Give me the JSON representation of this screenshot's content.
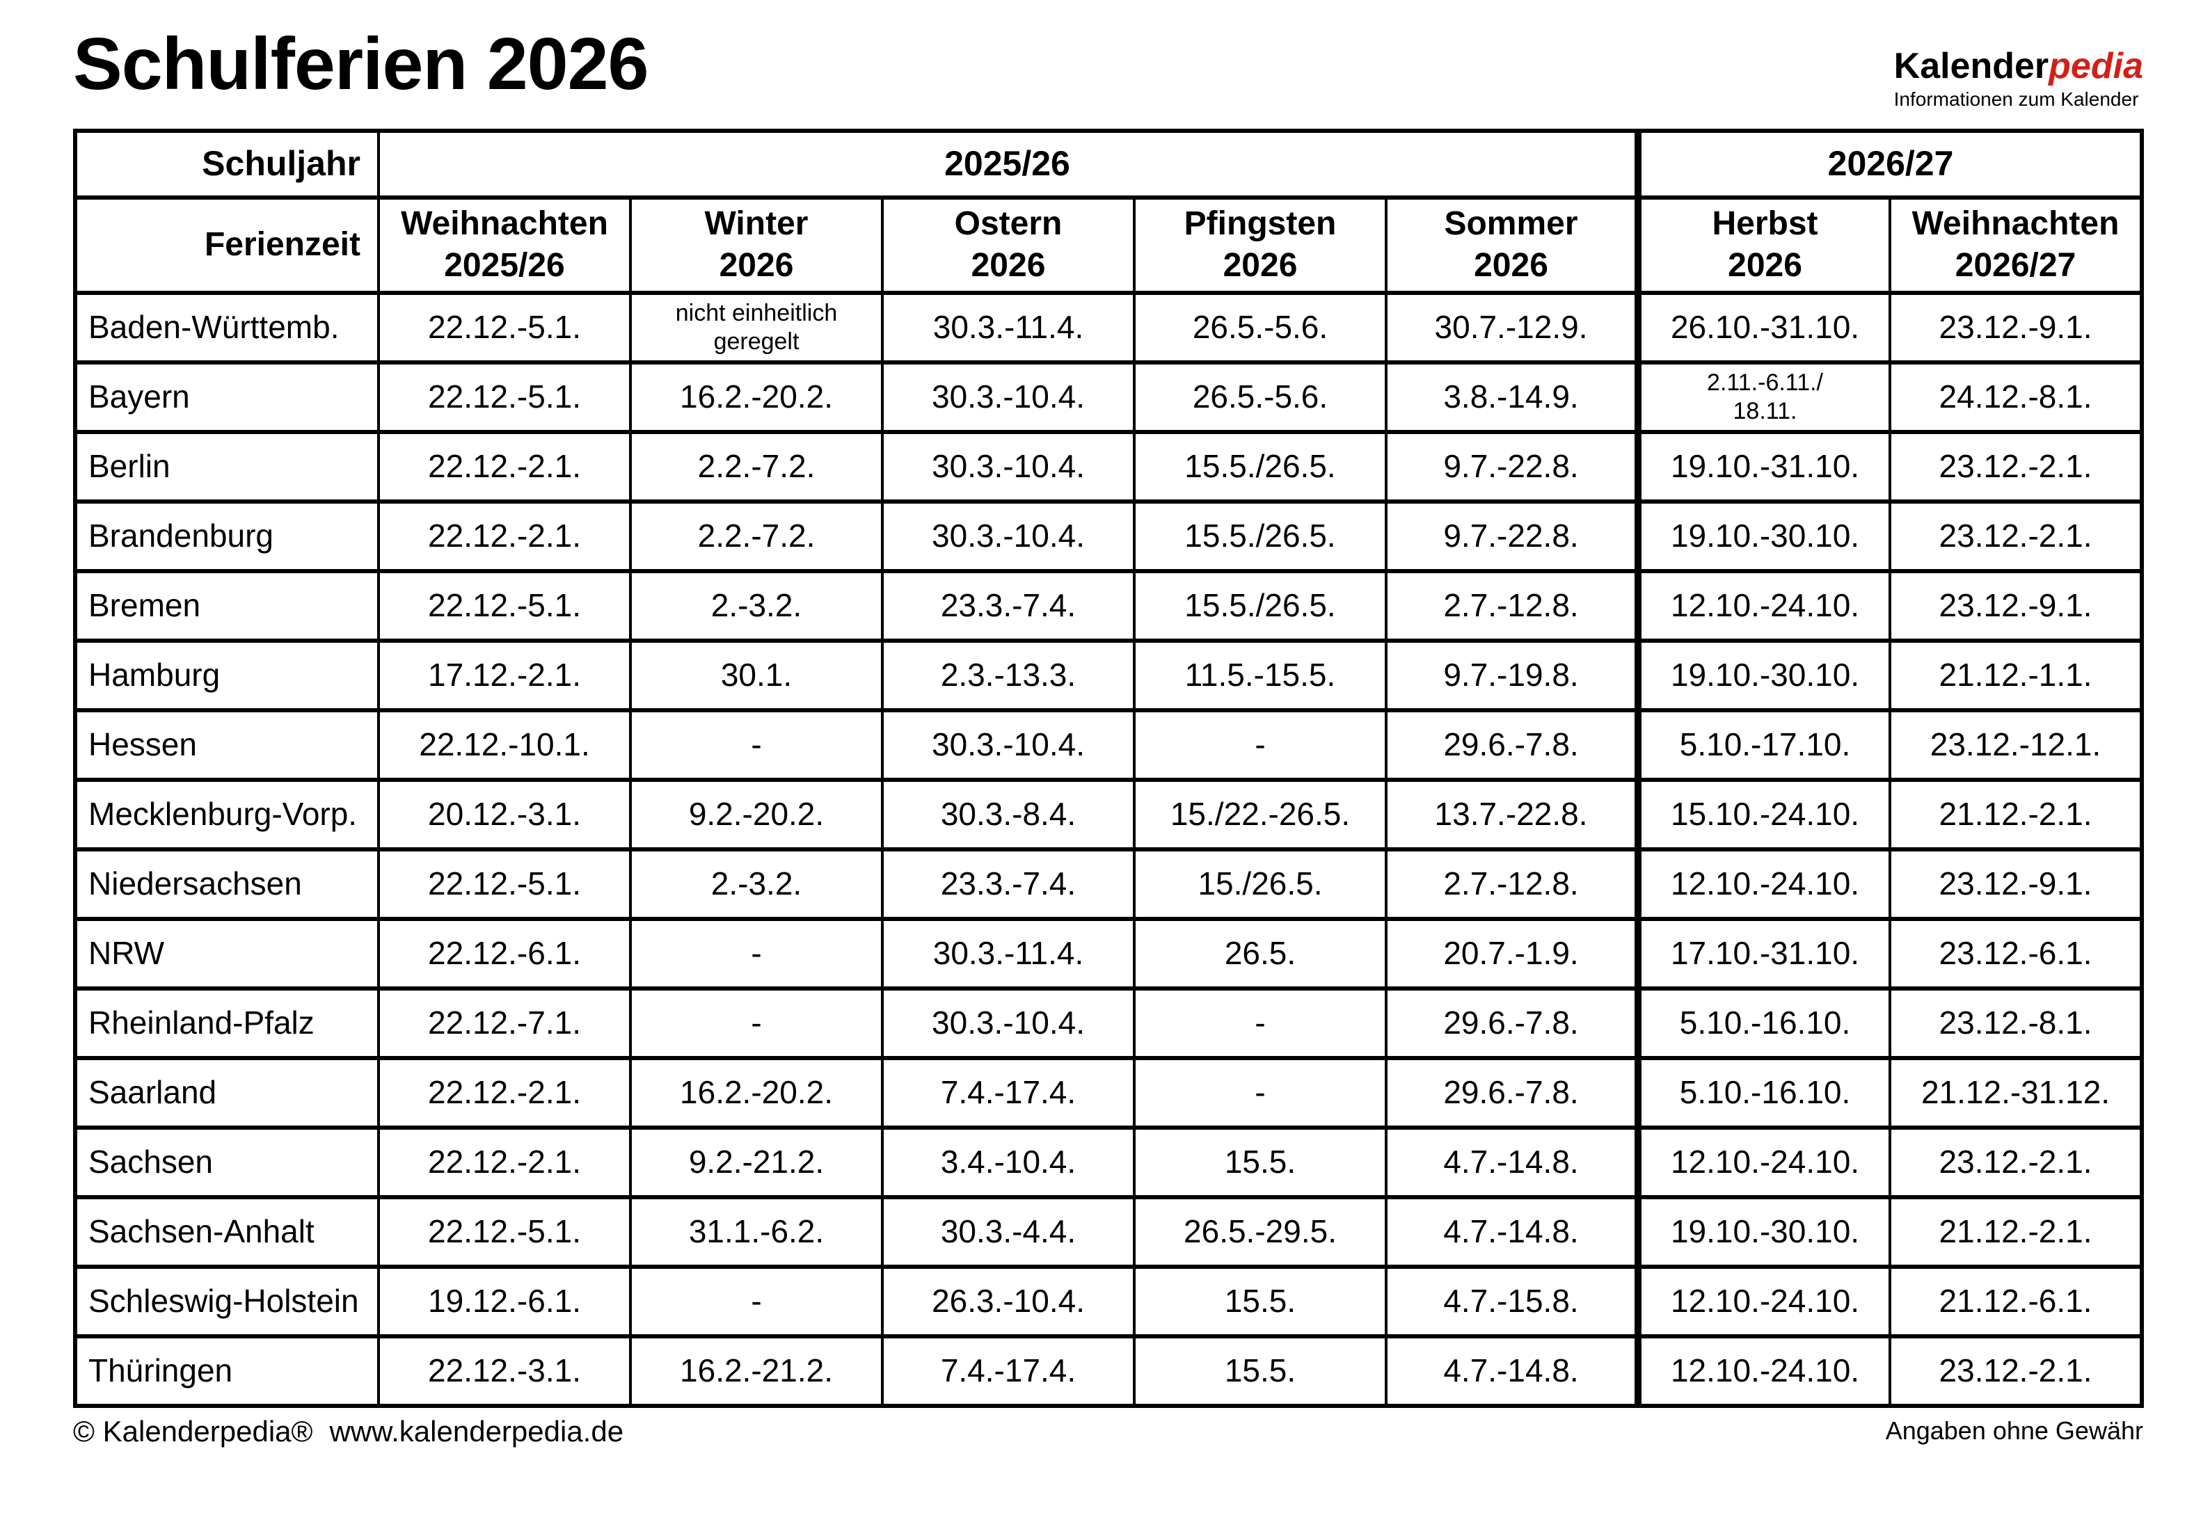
{
  "title": "Schulferien 2026",
  "logo": {
    "brand_black": "Kalender",
    "brand_red": "pedia",
    "brand_red_color": "#d22019",
    "tagline": "Informationen zum Kalender"
  },
  "table": {
    "corner_row1": "Schuljahr",
    "corner_row2": "Ferienzeit",
    "year_groups": [
      {
        "label": "2025/26",
        "colspan": 5
      },
      {
        "label": "2026/27",
        "colspan": 2
      }
    ],
    "columns": [
      "Weihnachten\n2025/26",
      "Winter\n2026",
      "Ostern\n2026",
      "Pfingsten\n2026",
      "Sommer\n2026",
      "Herbst\n2026",
      "Weihnachten\n2026/27"
    ],
    "rows": [
      {
        "state": "Baden-Württemb.",
        "dates": [
          "22.12.-5.1.",
          "nicht einheitlich\ngeregelt",
          "30.3.-11.4.",
          "26.5.-5.6.",
          "30.7.-12.9.",
          "26.10.-31.10.",
          "23.12.-9.1."
        ]
      },
      {
        "state": "Bayern",
        "dates": [
          "22.12.-5.1.",
          "16.2.-20.2.",
          "30.3.-10.4.",
          "26.5.-5.6.",
          "3.8.-14.9.",
          "2.11.-6.11./\n18.11.",
          "24.12.-8.1."
        ]
      },
      {
        "state": "Berlin",
        "dates": [
          "22.12.-2.1.",
          "2.2.-7.2.",
          "30.3.-10.4.",
          "15.5./26.5.",
          "9.7.-22.8.",
          "19.10.-31.10.",
          "23.12.-2.1."
        ]
      },
      {
        "state": "Brandenburg",
        "dates": [
          "22.12.-2.1.",
          "2.2.-7.2.",
          "30.3.-10.4.",
          "15.5./26.5.",
          "9.7.-22.8.",
          "19.10.-30.10.",
          "23.12.-2.1."
        ]
      },
      {
        "state": "Bremen",
        "dates": [
          "22.12.-5.1.",
          "2.-3.2.",
          "23.3.-7.4.",
          "15.5./26.5.",
          "2.7.-12.8.",
          "12.10.-24.10.",
          "23.12.-9.1."
        ]
      },
      {
        "state": "Hamburg",
        "dates": [
          "17.12.-2.1.",
          "30.1.",
          "2.3.-13.3.",
          "11.5.-15.5.",
          "9.7.-19.8.",
          "19.10.-30.10.",
          "21.12.-1.1."
        ]
      },
      {
        "state": "Hessen",
        "dates": [
          "22.12.-10.1.",
          "-",
          "30.3.-10.4.",
          "-",
          "29.6.-7.8.",
          "5.10.-17.10.",
          "23.12.-12.1."
        ]
      },
      {
        "state": "Mecklenburg-Vorp.",
        "dates": [
          "20.12.-3.1.",
          "9.2.-20.2.",
          "30.3.-8.4.",
          "15./22.-26.5.",
          "13.7.-22.8.",
          "15.10.-24.10.",
          "21.12.-2.1."
        ]
      },
      {
        "state": "Niedersachsen",
        "dates": [
          "22.12.-5.1.",
          "2.-3.2.",
          "23.3.-7.4.",
          "15./26.5.",
          "2.7.-12.8.",
          "12.10.-24.10.",
          "23.12.-9.1."
        ]
      },
      {
        "state": "NRW",
        "dates": [
          "22.12.-6.1.",
          "-",
          "30.3.-11.4.",
          "26.5.",
          "20.7.-1.9.",
          "17.10.-31.10.",
          "23.12.-6.1."
        ]
      },
      {
        "state": "Rheinland-Pfalz",
        "dates": [
          "22.12.-7.1.",
          "-",
          "30.3.-10.4.",
          "-",
          "29.6.-7.8.",
          "5.10.-16.10.",
          "23.12.-8.1."
        ]
      },
      {
        "state": "Saarland",
        "dates": [
          "22.12.-2.1.",
          "16.2.-20.2.",
          "7.4.-17.4.",
          "-",
          "29.6.-7.8.",
          "5.10.-16.10.",
          "21.12.-31.12."
        ]
      },
      {
        "state": "Sachsen",
        "dates": [
          "22.12.-2.1.",
          "9.2.-21.2.",
          "3.4.-10.4.",
          "15.5.",
          "4.7.-14.8.",
          "12.10.-24.10.",
          "23.12.-2.1."
        ]
      },
      {
        "state": "Sachsen-Anhalt",
        "dates": [
          "22.12.-5.1.",
          "31.1.-6.2.",
          "30.3.-4.4.",
          "26.5.-29.5.",
          "4.7.-14.8.",
          "19.10.-30.10.",
          "21.12.-2.1."
        ]
      },
      {
        "state": "Schleswig-Holstein",
        "dates": [
          "19.12.-6.1.",
          "-",
          "26.3.-10.4.",
          "15.5.",
          "4.7.-15.8.",
          "12.10.-24.10.",
          "21.12.-6.1."
        ]
      },
      {
        "state": "Thüringen",
        "dates": [
          "22.12.-3.1.",
          "16.2.-21.2.",
          "7.4.-17.4.",
          "15.5.",
          "4.7.-14.8.",
          "12.10.-24.10.",
          "23.12.-2.1."
        ]
      }
    ]
  },
  "footer": {
    "copyright": "© Kalenderpedia®",
    "url": "www.kalenderpedia.de",
    "disclaimer": "Angaben ohne Gewähr"
  }
}
